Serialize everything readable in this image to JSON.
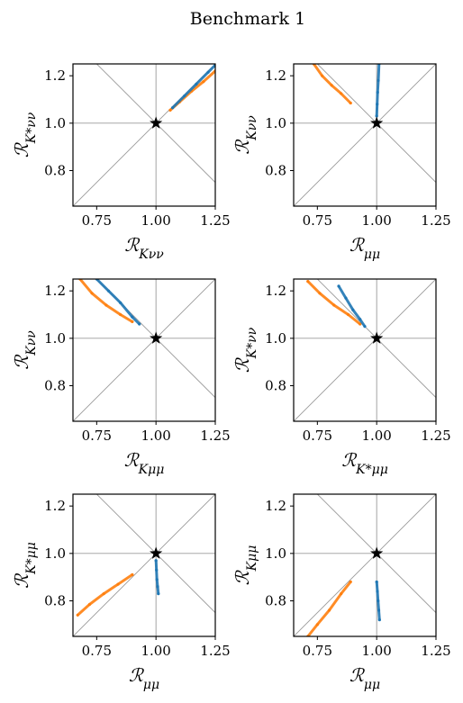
{
  "figure": {
    "title": "Benchmark 1"
  },
  "colors": {
    "orange": "#ff7f0e",
    "blue": "#1f77b4",
    "reference_lines": "#9a9a9a",
    "star": "#000000"
  },
  "chart_data": [
    {
      "type": "scatter",
      "xlabel": "R_Kνν",
      "ylabel": "R_K*νν",
      "xlim": [
        0.65,
        1.25
      ],
      "ylim": [
        0.65,
        1.25
      ],
      "xticks": [
        "0.75",
        "1.00",
        "1.25"
      ],
      "yticks": [
        "0.8",
        "1.0",
        "1.2"
      ],
      "reference_lines": "lines through (1,1) with slopes 0, ∞, +1 and −1",
      "marker": {
        "x": 1.0,
        "y": 1.0,
        "symbol": "star"
      },
      "series": [
        {
          "color": "orange",
          "points": [
            [
              1.06,
              1.055
            ],
            [
              1.1,
              1.09
            ],
            [
              1.15,
              1.135
            ],
            [
              1.2,
              1.175
            ],
            [
              1.25,
              1.22
            ]
          ]
        },
        {
          "color": "blue",
          "points": [
            [
              1.07,
              1.065
            ],
            [
              1.12,
              1.115
            ],
            [
              1.17,
              1.165
            ],
            [
              1.22,
              1.215
            ],
            [
              1.25,
              1.245
            ]
          ]
        }
      ]
    },
    {
      "type": "scatter",
      "xlabel": "R_μμ",
      "ylabel": "R_Kνν",
      "xlim": [
        0.65,
        1.25
      ],
      "ylim": [
        0.65,
        1.25
      ],
      "xticks": [
        "0.75",
        "1.00",
        "1.25"
      ],
      "yticks": [
        "0.8",
        "1.0",
        "1.2"
      ],
      "reference_lines": "lines through (1,1) with slopes 0, ∞, +1 and −1",
      "marker": {
        "x": 1.0,
        "y": 1.0,
        "symbol": "star"
      },
      "series": [
        {
          "color": "orange",
          "points": [
            [
              0.735,
              1.25
            ],
            [
              0.77,
              1.2
            ],
            [
              0.81,
              1.16
            ],
            [
              0.85,
              1.125
            ],
            [
              0.89,
              1.085
            ]
          ]
        },
        {
          "color": "blue",
          "points": [
            [
              1.0,
              1.03
            ],
            [
              1.002,
              1.08
            ],
            [
              1.004,
              1.13
            ],
            [
              1.007,
              1.18
            ],
            [
              1.01,
              1.25
            ]
          ]
        }
      ]
    },
    {
      "type": "scatter",
      "xlabel": "R_Kμμ",
      "ylabel": "R_Kνν",
      "xlim": [
        0.65,
        1.25
      ],
      "ylim": [
        0.65,
        1.25
      ],
      "xticks": [
        "0.75",
        "1.00",
        "1.25"
      ],
      "yticks": [
        "0.8",
        "1.0",
        "1.2"
      ],
      "reference_lines": "lines through (1,1) with slopes 0, ∞, +1 and −1",
      "marker": {
        "x": 1.0,
        "y": 1.0,
        "symbol": "star"
      },
      "series": [
        {
          "color": "orange",
          "points": [
            [
              0.68,
              1.25
            ],
            [
              0.73,
              1.19
            ],
            [
              0.79,
              1.14
            ],
            [
              0.85,
              1.1
            ],
            [
              0.9,
              1.07
            ]
          ]
        },
        {
          "color": "blue",
          "points": [
            [
              0.75,
              1.25
            ],
            [
              0.8,
              1.2
            ],
            [
              0.85,
              1.15
            ],
            [
              0.9,
              1.09
            ],
            [
              0.93,
              1.06
            ]
          ]
        }
      ]
    },
    {
      "type": "scatter",
      "xlabel": "R_K*μμ",
      "ylabel": "R_K*νν",
      "xlim": [
        0.65,
        1.25
      ],
      "ylim": [
        0.65,
        1.25
      ],
      "xticks": [
        "0.75",
        "1.00",
        "1.25"
      ],
      "yticks": [
        "0.8",
        "1.0",
        "1.2"
      ],
      "reference_lines": "lines through (1,1) with slopes 0, ∞, +1 and −1",
      "marker": {
        "x": 1.0,
        "y": 1.0,
        "symbol": "star"
      },
      "series": [
        {
          "color": "orange",
          "points": [
            [
              0.71,
              1.24
            ],
            [
              0.76,
              1.19
            ],
            [
              0.82,
              1.14
            ],
            [
              0.88,
              1.1
            ],
            [
              0.93,
              1.06
            ]
          ]
        },
        {
          "color": "blue",
          "points": [
            [
              0.84,
              1.22
            ],
            [
              0.87,
              1.17
            ],
            [
              0.9,
              1.12
            ],
            [
              0.93,
              1.08
            ],
            [
              0.95,
              1.05
            ]
          ]
        }
      ]
    },
    {
      "type": "scatter",
      "xlabel": "R_μμ",
      "ylabel": "R_K*μμ",
      "xlim": [
        0.65,
        1.25
      ],
      "ylim": [
        0.65,
        1.25
      ],
      "xticks": [
        "0.75",
        "1.00",
        "1.25"
      ],
      "yticks": [
        "0.8",
        "1.0",
        "1.2"
      ],
      "reference_lines": "lines through (1,1) with slopes 0, ∞, +1 and −1",
      "marker": {
        "x": 1.0,
        "y": 1.0,
        "symbol": "star"
      },
      "series": [
        {
          "color": "orange",
          "points": [
            [
              0.67,
              0.74
            ],
            [
              0.72,
              0.785
            ],
            [
              0.78,
              0.83
            ],
            [
              0.84,
              0.87
            ],
            [
              0.9,
              0.91
            ]
          ]
        },
        {
          "color": "blue",
          "points": [
            [
              1.0,
              0.97
            ],
            [
              1.002,
              0.93
            ],
            [
              1.004,
              0.89
            ],
            [
              1.007,
              0.86
            ],
            [
              1.01,
              0.83
            ]
          ]
        }
      ]
    },
    {
      "type": "scatter",
      "xlabel": "R_μμ",
      "ylabel": "R_Kμμ",
      "xlim": [
        0.65,
        1.25
      ],
      "ylim": [
        0.65,
        1.25
      ],
      "xticks": [
        "0.75",
        "1.00",
        "1.25"
      ],
      "yticks": [
        "0.8",
        "1.0",
        "1.2"
      ],
      "reference_lines": "lines through (1,1) with slopes 0, ∞, +1 and −1",
      "marker": {
        "x": 1.0,
        "y": 1.0,
        "symbol": "star"
      },
      "series": [
        {
          "color": "orange",
          "points": [
            [
              0.71,
              0.65
            ],
            [
              0.75,
              0.7
            ],
            [
              0.8,
              0.76
            ],
            [
              0.85,
              0.83
            ],
            [
              0.89,
              0.88
            ]
          ]
        },
        {
          "color": "blue",
          "points": [
            [
              1.0,
              0.88
            ],
            [
              1.003,
              0.84
            ],
            [
              1.006,
              0.8
            ],
            [
              1.009,
              0.76
            ],
            [
              1.012,
              0.72
            ]
          ]
        }
      ]
    }
  ]
}
